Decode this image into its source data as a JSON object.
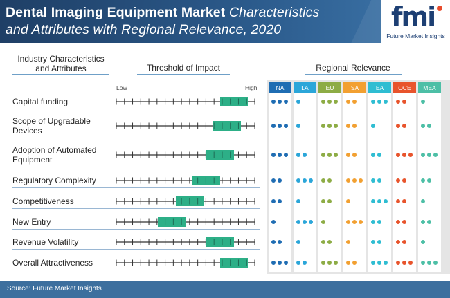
{
  "title": {
    "bold": "Dental Imaging Equipment Market",
    "italic_line1": "Characteristics",
    "italic_line2": "and Attributes with Regional Relevance, 2020"
  },
  "logo": {
    "mark": "fmi",
    "text": "Future Market Insights"
  },
  "columns": {
    "characteristics": "Industry Characteristics and Attributes",
    "threshold": "Threshold of Impact",
    "regional": "Regional Relevance"
  },
  "scale_labels": {
    "low": "Low",
    "high": "High"
  },
  "regions": [
    {
      "code": "NA",
      "color": "#1f6db3"
    },
    {
      "code": "LA",
      "color": "#2ba6d9"
    },
    {
      "code": "EU",
      "color": "#8dac45"
    },
    {
      "code": "SA",
      "color": "#f2a031"
    },
    {
      "code": "EA",
      "color": "#2fbdd2"
    },
    {
      "code": "OCE",
      "color": "#e8542c"
    },
    {
      "code": "MEA",
      "color": "#4dbfa6"
    }
  ],
  "colors": {
    "impact_bar": "#2daf87",
    "axis": "#333333"
  },
  "chart_data": {
    "type": "table",
    "impact_scale": [
      0,
      10
    ],
    "rows": [
      {
        "label": "Capital funding",
        "impact_start": 7.5,
        "impact_end": 9.5,
        "relevance": [
          3,
          1,
          3,
          2,
          3,
          2,
          1
        ]
      },
      {
        "label": "Scope of Upgradable Devices",
        "impact_start": 7.0,
        "impact_end": 9.0,
        "relevance": [
          3,
          1,
          3,
          2,
          1,
          2,
          2
        ]
      },
      {
        "label": "Adoption of Automated Equipment",
        "impact_start": 6.5,
        "impact_end": 8.5,
        "relevance": [
          3,
          2,
          3,
          2,
          2,
          3,
          3
        ]
      },
      {
        "label": "Regulatory Complexity",
        "impact_start": 5.5,
        "impact_end": 7.5,
        "relevance": [
          2,
          3,
          2,
          3,
          2,
          2,
          2
        ]
      },
      {
        "label": "Competitiveness",
        "impact_start": 4.3,
        "impact_end": 6.3,
        "relevance": [
          2,
          1,
          2,
          1,
          3,
          2,
          1
        ]
      },
      {
        "label": "New Entry",
        "impact_start": 3.0,
        "impact_end": 5.0,
        "relevance": [
          1,
          3,
          1,
          3,
          2,
          2,
          2
        ]
      },
      {
        "label": "Revenue Volatility",
        "impact_start": 6.5,
        "impact_end": 8.5,
        "relevance": [
          2,
          1,
          2,
          1,
          2,
          2,
          1
        ]
      },
      {
        "label": "Overall Attractiveness",
        "impact_start": 7.5,
        "impact_end": 9.5,
        "relevance": [
          3,
          2,
          3,
          2,
          3,
          3,
          3
        ]
      }
    ]
  },
  "source": "Source: Future Market Insights"
}
